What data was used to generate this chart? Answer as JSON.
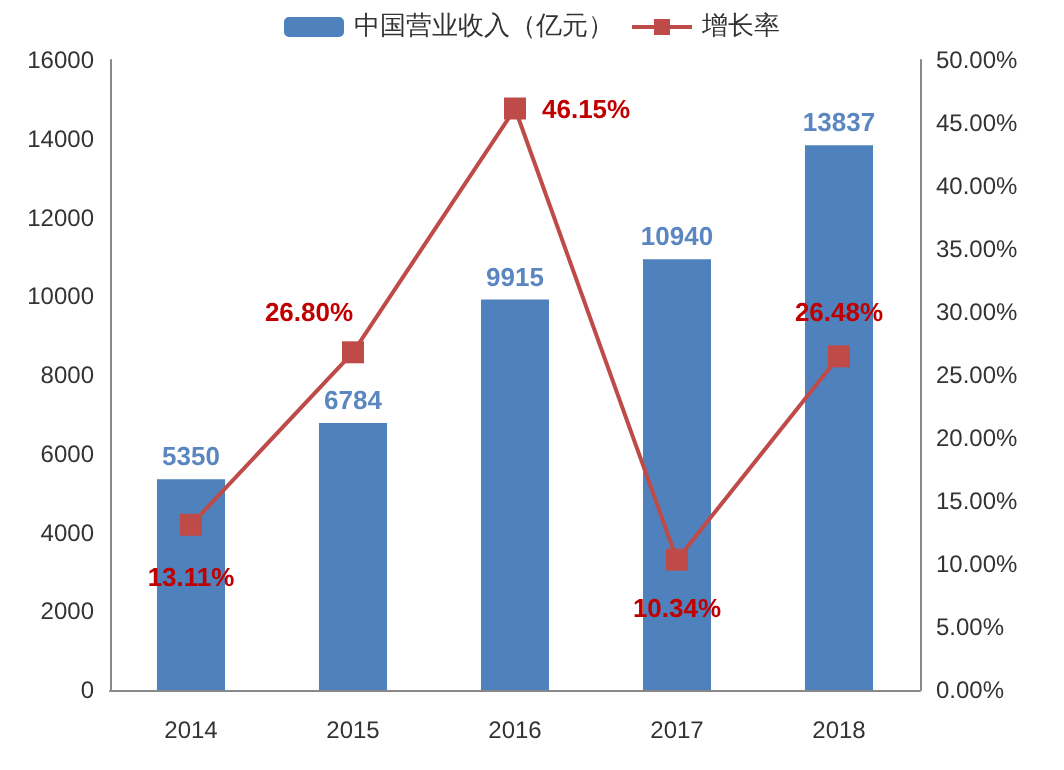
{
  "chart_data": {
    "type": "bar",
    "categories": [
      "2014",
      "2015",
      "2016",
      "2017",
      "2018"
    ],
    "series": [
      {
        "name": "中国营业收入（亿元）",
        "color": "#4f81bd",
        "values": [
          5350,
          6784,
          9915,
          10940,
          13837
        ],
        "value_labels": [
          "5350",
          "6784",
          "9915",
          "10940",
          "13837"
        ]
      },
      {
        "name": "增长率",
        "type": "line",
        "axis": "y2",
        "color": "#be4b48",
        "values": [
          13.11,
          26.8,
          46.15,
          10.34,
          26.48
        ],
        "value_labels": [
          "13.11%",
          "26.80%",
          "46.15%",
          "10.34%",
          "26.48%"
        ]
      }
    ],
    "ylim": [
      0,
      16000
    ],
    "yticks": [
      0,
      2000,
      4000,
      6000,
      8000,
      10000,
      12000,
      14000,
      16000
    ],
    "y2lim": [
      0,
      50
    ],
    "y2ticks": [
      {
        "value": 0,
        "label": "0.00%"
      },
      {
        "value": 5,
        "label": "5.00%"
      },
      {
        "value": 10,
        "label": "10.00%"
      },
      {
        "value": 15,
        "label": "15.00%"
      },
      {
        "value": 20,
        "label": "20.00%"
      },
      {
        "value": 25,
        "label": "25.00%"
      },
      {
        "value": 30,
        "label": "30.00%"
      },
      {
        "value": 35,
        "label": "35.00%"
      },
      {
        "value": 40,
        "label": "40.00%"
      },
      {
        "value": 45,
        "label": "45.00%"
      },
      {
        "value": 50,
        "label": "50.00%"
      }
    ],
    "legend": "top",
    "grid": false,
    "marker": "square"
  }
}
